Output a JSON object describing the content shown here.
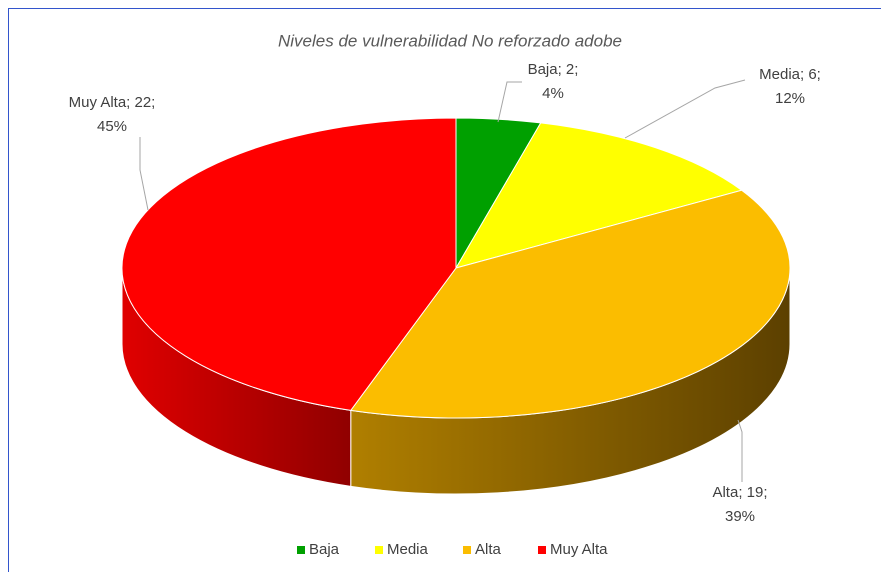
{
  "chart_data": {
    "type": "pie",
    "title": "Niveles de vulnerabilidad No reforzado adobe",
    "categories": [
      "Baja",
      "Media",
      "Alta",
      "Muy Alta"
    ],
    "values": [
      2,
      6,
      19,
      22
    ],
    "data_labels": [
      [
        "Baja; 2;",
        "4%"
      ],
      [
        "Media; 6;",
        "12%"
      ],
      [
        "Alta; 19;",
        "39%"
      ],
      [
        "Muy Alta; 22;",
        "45%"
      ]
    ],
    "colors": [
      "#00a000",
      "#ffff00",
      "#fbbd00",
      "#ff0000"
    ],
    "side_colors": [
      [
        "#004d00",
        "#007a00"
      ],
      [
        "#7a7a00",
        "#b3b300"
      ],
      [
        "#5c4000",
        "#b07f00"
      ],
      [
        "#900000",
        "#e00000"
      ]
    ],
    "legend": "bottom"
  }
}
